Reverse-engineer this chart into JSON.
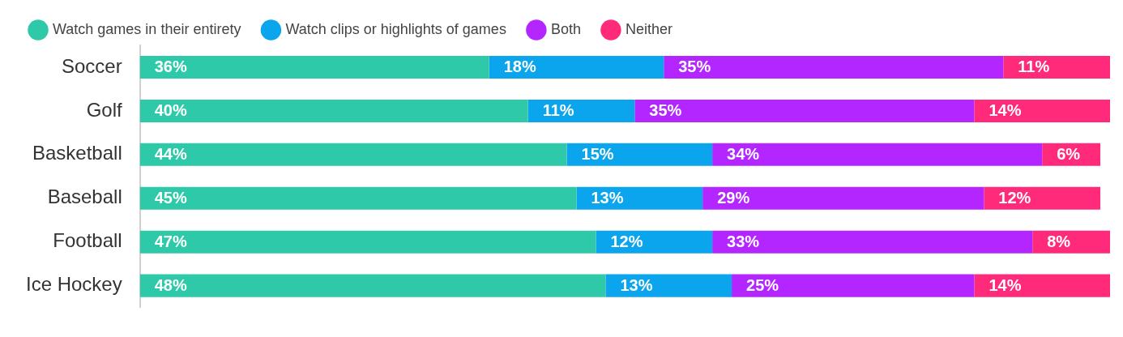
{
  "chart_data": {
    "type": "bar",
    "orientation": "horizontal",
    "stacked": true,
    "legend": "top",
    "tick_labels": "y",
    "grid": false,
    "xlim": [
      0,
      100
    ],
    "categories": [
      "Soccer",
      "Golf",
      "Basketball",
      "Baseball",
      "Football",
      "Ice Hockey"
    ],
    "series": [
      {
        "name": "Watch games in their entirety",
        "color": "#2ec9a8",
        "values": [
          36,
          40,
          44,
          45,
          47,
          48
        ],
        "value_labels": [
          "36%",
          "40%",
          "44%",
          "45%",
          "47%",
          "48%"
        ]
      },
      {
        "name": "Watch clips or highlights of games",
        "color": "#0aa5ec",
        "values": [
          18,
          11,
          15,
          13,
          12,
          13
        ],
        "value_labels": [
          "18%",
          "11%",
          "15%",
          "13%",
          "12%",
          "13%"
        ]
      },
      {
        "name": "Both",
        "color": "#b426ff",
        "values": [
          35,
          35,
          34,
          29,
          33,
          25
        ],
        "value_labels": [
          "35%",
          "35%",
          "34%",
          "29%",
          "33%",
          "25%"
        ]
      },
      {
        "name": "Neither",
        "color": "#ff2a7a",
        "values": [
          11,
          14,
          6,
          12,
          8,
          14
        ],
        "value_labels": [
          "11%",
          "14%",
          "6%",
          "12%",
          "8%",
          "14%"
        ]
      }
    ]
  }
}
